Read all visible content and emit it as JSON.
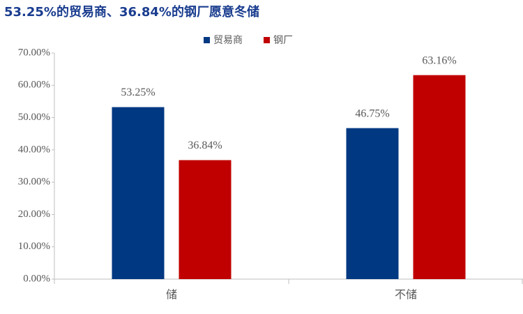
{
  "chart_data": {
    "type": "bar",
    "title": "53.25%的贸易商、36.84%的钢厂愿意冬储",
    "categories": [
      "储",
      "不储"
    ],
    "series": [
      {
        "name": "贸易商",
        "color": "#003882",
        "values": [
          53.25,
          46.75
        ],
        "value_labels": [
          "53.25%",
          "46.75%"
        ]
      },
      {
        "name": "钢厂",
        "color": "#c00000",
        "values": [
          36.84,
          63.16
        ],
        "value_labels": [
          "36.84%",
          "63.16%"
        ]
      }
    ],
    "ylim": [
      0,
      70
    ],
    "yticks": [
      {
        "value": 0,
        "label": "0.00%"
      },
      {
        "value": 10,
        "label": "10.00%"
      },
      {
        "value": 20,
        "label": "20.00%"
      },
      {
        "value": 30,
        "label": "30.00%"
      },
      {
        "value": 40,
        "label": "40.00%"
      },
      {
        "value": 50,
        "label": "50.00%"
      },
      {
        "value": 60,
        "label": "60.00%"
      },
      {
        "value": 70,
        "label": "70.00%"
      }
    ],
    "legend": "top"
  }
}
